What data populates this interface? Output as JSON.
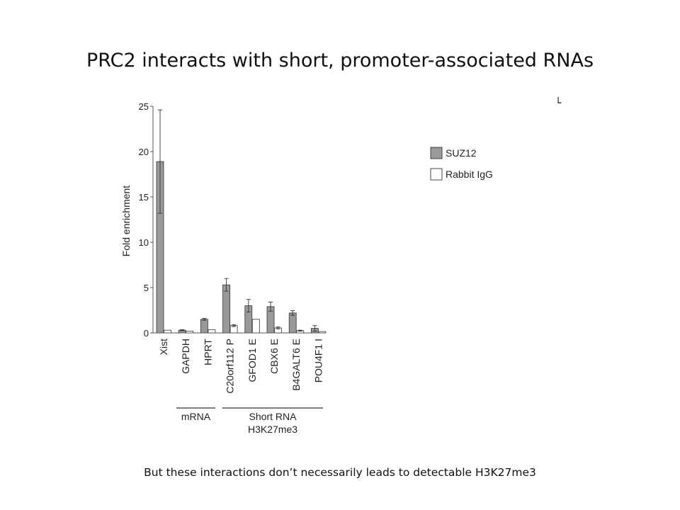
{
  "slide": {
    "title": "PRC2 interacts with short, promoter-associated RNAs",
    "footer": "But these interactions don’t necessarily leads to detectable H3K27me3",
    "corner_mark": "└"
  },
  "chart_data": {
    "type": "bar",
    "title": "",
    "xlabel": "",
    "ylabel": "Fold enrichment",
    "ylim": [
      0,
      25
    ],
    "yticks": [
      0,
      5,
      10,
      15,
      20,
      25
    ],
    "grid": false,
    "legend_position": "right",
    "categories": [
      "Xist",
      "GAPDH",
      "HPRT",
      "C20orf112 P",
      "GFOD1 E",
      "CBX6 E",
      "B4GALT6 E",
      "POU4F1 I"
    ],
    "series": [
      {
        "name": "SUZ12",
        "color": "#999999",
        "values": [
          18.9,
          0.3,
          1.5,
          5.3,
          3.0,
          2.9,
          2.2,
          0.5
        ],
        "errors": [
          5.7,
          0.05,
          0.1,
          0.7,
          0.7,
          0.5,
          0.25,
          0.3
        ]
      },
      {
        "name": "Rabbit IgG",
        "color": "#ffffff",
        "values": [
          0.3,
          0.2,
          0.35,
          0.8,
          1.5,
          0.55,
          0.25,
          0.15
        ],
        "errors": [
          0.0,
          0.0,
          0.0,
          0.1,
          0.0,
          0.1,
          0.05,
          0.0
        ]
      }
    ],
    "groups": [
      {
        "label": "mRNA",
        "sublabel": "",
        "from": 1,
        "to": 2
      },
      {
        "label": "Short RNA",
        "sublabel": "H3K27me3",
        "from": 3,
        "to": 7
      }
    ]
  }
}
